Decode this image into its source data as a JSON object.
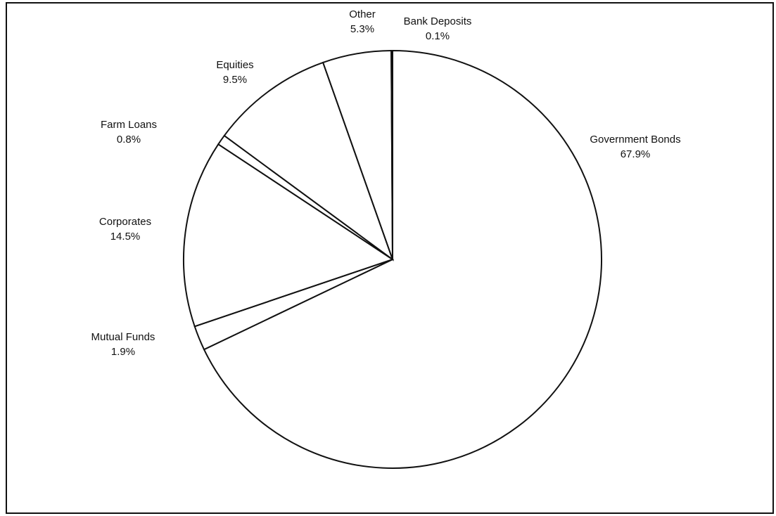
{
  "chart_data": {
    "type": "pie",
    "title": "",
    "start_angle_deg": 0,
    "direction": "clockwise",
    "slices": [
      {
        "label": "Government Bonds",
        "pct_label": "67.9%",
        "value": 67.9
      },
      {
        "label": "Mutual Funds",
        "pct_label": "1.9%",
        "value": 1.9
      },
      {
        "label": "Corporates",
        "pct_label": "14.5%",
        "value": 14.5
      },
      {
        "label": "Farm Loans",
        "pct_label": "0.8%",
        "value": 0.8
      },
      {
        "label": "Equities",
        "pct_label": "9.5%",
        "value": 9.5
      },
      {
        "label": "Other",
        "pct_label": "5.3%",
        "value": 5.3
      },
      {
        "label": "Bank Deposits",
        "pct_label": "0.1%",
        "value": 0.1
      }
    ],
    "colors": {
      "fill": "#ffffff",
      "stroke": "#111111",
      "text": "#111111"
    }
  }
}
